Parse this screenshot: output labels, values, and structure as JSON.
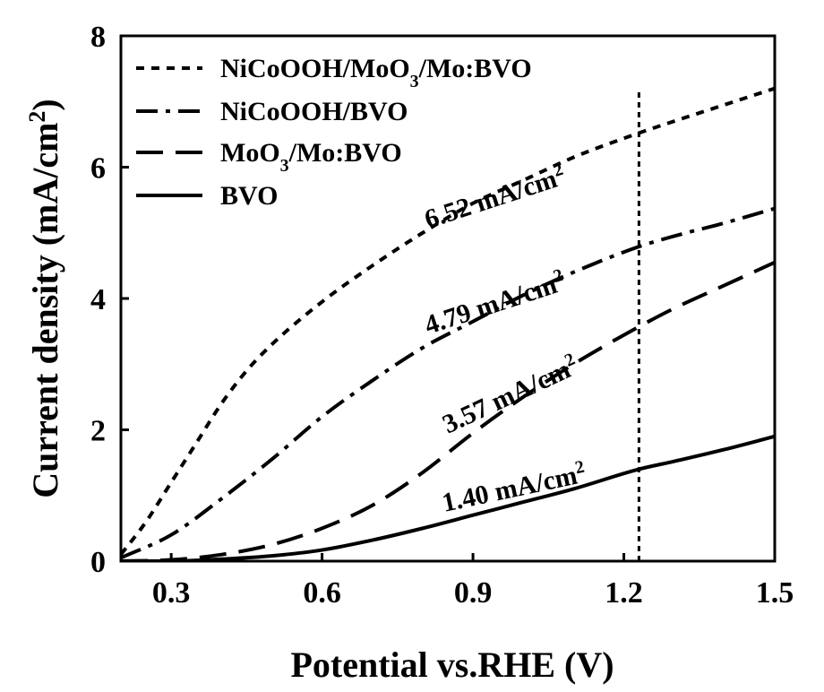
{
  "chart_data": {
    "type": "line",
    "xlabel": "Potential vs.RHE (V)",
    "ylabel": "Current density (mA/cm²)",
    "xlim": [
      0.2,
      1.5
    ],
    "ylim": [
      0,
      8
    ],
    "xticks": [
      0.3,
      0.6,
      0.9,
      1.2,
      1.5
    ],
    "xtick_labels": [
      "0.3",
      "0.6",
      "0.9",
      "1.2",
      "1.5"
    ],
    "yticks": [
      0,
      2,
      4,
      6,
      8
    ],
    "ytick_labels": [
      "0",
      "2",
      "4",
      "6",
      "8"
    ],
    "grid": false,
    "legend_position": "top-left",
    "reference_line": {
      "x": 1.23,
      "style": "dotted"
    },
    "series": [
      {
        "name": "NiCoOOH/MoO3/Mo:BVO",
        "line_style": "short-dash",
        "x": [
          0.2,
          0.25,
          0.3,
          0.35,
          0.4,
          0.45,
          0.5,
          0.6,
          0.7,
          0.8,
          0.9,
          1.0,
          1.1,
          1.23,
          1.3,
          1.4,
          1.5
        ],
        "y": [
          0.1,
          0.6,
          1.2,
          1.8,
          2.4,
          2.9,
          3.3,
          3.95,
          4.5,
          5.0,
          5.45,
          5.8,
          6.15,
          6.52,
          6.7,
          6.95,
          7.2
        ]
      },
      {
        "name": "NiCoOOH/BVO",
        "line_style": "dash-dot",
        "x": [
          0.2,
          0.3,
          0.4,
          0.5,
          0.6,
          0.7,
          0.8,
          0.9,
          1.0,
          1.1,
          1.23,
          1.3,
          1.4,
          1.5
        ],
        "y": [
          0.05,
          0.4,
          0.95,
          1.55,
          2.2,
          2.75,
          3.25,
          3.65,
          4.05,
          4.4,
          4.79,
          4.95,
          5.15,
          5.37
        ]
      },
      {
        "name": "MoO3/Mo:BVO",
        "line_style": "long-dash",
        "x": [
          0.2,
          0.3,
          0.4,
          0.5,
          0.6,
          0.7,
          0.8,
          0.9,
          1.0,
          1.1,
          1.23,
          1.3,
          1.4,
          1.5
        ],
        "y": [
          0.0,
          0.02,
          0.1,
          0.25,
          0.5,
          0.85,
          1.35,
          1.95,
          2.5,
          3.0,
          3.57,
          3.85,
          4.2,
          4.55
        ]
      },
      {
        "name": "BVO",
        "line_style": "solid",
        "x": [
          0.2,
          0.3,
          0.4,
          0.5,
          0.6,
          0.7,
          0.8,
          0.9,
          1.0,
          1.1,
          1.23,
          1.3,
          1.4,
          1.5
        ],
        "y": [
          0.0,
          0.0,
          0.03,
          0.08,
          0.17,
          0.32,
          0.5,
          0.7,
          0.9,
          1.1,
          1.4,
          1.52,
          1.7,
          1.9
        ]
      }
    ],
    "annotations": [
      {
        "text": "6.52 mA/cm",
        "sup": "2",
        "x": 1.23,
        "y": 6.52,
        "series": "NiCoOOH/MoO3/Mo:BVO"
      },
      {
        "text": "4.79 mA/cm",
        "sup": "2",
        "x": 1.23,
        "y": 4.79,
        "series": "NiCoOOH/BVO"
      },
      {
        "text": "3.57 mA/cm",
        "sup": "2",
        "x": 1.23,
        "y": 3.57,
        "series": "MoO3/Mo:BVO"
      },
      {
        "text": "1.40 mA/cm",
        "sup": "2",
        "x": 1.23,
        "y": 1.4,
        "series": "BVO"
      }
    ]
  },
  "labels": {
    "ylabel_main": "Current density (mA/cm",
    "ylabel_sup": "2",
    "ylabel_end": ")",
    "legend": [
      {
        "parts": [
          [
            "NiCoOOH/MoO",
            ""
          ],
          [
            "3",
            "sub"
          ],
          [
            "/Mo:BVO",
            ""
          ]
        ]
      },
      {
        "parts": [
          [
            "NiCoOOH/BVO",
            ""
          ]
        ]
      },
      {
        "parts": [
          [
            "MoO",
            ""
          ],
          [
            "3",
            "sub"
          ],
          [
            "/Mo:BVO",
            ""
          ]
        ]
      },
      {
        "parts": [
          [
            "BVO",
            ""
          ]
        ]
      }
    ]
  }
}
